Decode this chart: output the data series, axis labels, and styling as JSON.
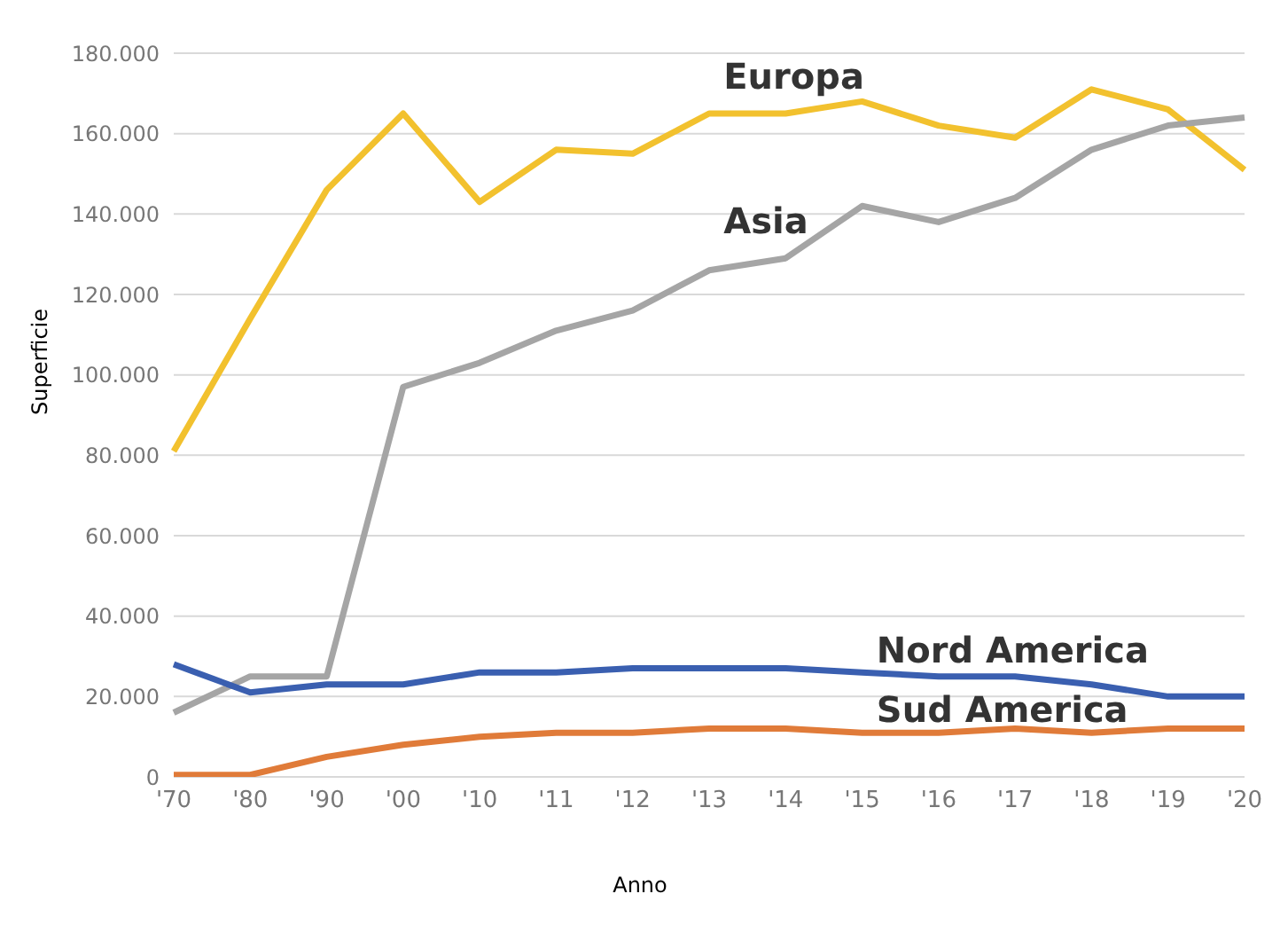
{
  "chart_data": {
    "type": "line",
    "xlabel": "Anno",
    "ylabel": "Superficie",
    "categories": [
      "'70",
      "'80",
      "'90",
      "'00",
      "'10",
      "'11",
      "'12",
      "'13",
      "'14",
      "'15",
      "'16",
      "'17",
      "'18",
      "'19",
      "'20"
    ],
    "series": [
      {
        "name": "Europa",
        "color": "#f2c12e",
        "values": [
          81000,
          114000,
          146000,
          165000,
          143000,
          156000,
          155000,
          165000,
          165000,
          168000,
          162000,
          159000,
          171000,
          166000,
          151000
        ]
      },
      {
        "name": "Asia",
        "color": "#a5a5a5",
        "values": [
          16000,
          25000,
          25000,
          97000,
          103000,
          111000,
          116000,
          126000,
          129000,
          142000,
          138000,
          144000,
          156000,
          162000,
          164000
        ]
      },
      {
        "name": "Nord America",
        "color": "#3a5fb0",
        "values": [
          28000,
          21000,
          23000,
          23000,
          26000,
          26000,
          27000,
          27000,
          27000,
          26000,
          25000,
          25000,
          23000,
          20000,
          20000
        ]
      },
      {
        "name": "Sud America",
        "color": "#e07b39",
        "values": [
          500,
          500,
          5000,
          8000,
          10000,
          11000,
          11000,
          12000,
          12000,
          11000,
          11000,
          12000,
          11000,
          12000,
          12000
        ]
      }
    ],
    "ylim": [
      0,
      180000
    ],
    "yticks": [
      {
        "value": 0,
        "label": "0"
      },
      {
        "value": 20000,
        "label": "20.000"
      },
      {
        "value": 40000,
        "label": "40.000"
      },
      {
        "value": 60000,
        "label": "60.000"
      },
      {
        "value": 80000,
        "label": "80.000"
      },
      {
        "value": 100000,
        "label": "100.000"
      },
      {
        "value": 120000,
        "label": "120.000"
      },
      {
        "value": 140000,
        "label": "140.000"
      },
      {
        "value": 160000,
        "label": "160.000"
      },
      {
        "value": 180000,
        "label": "180.000"
      }
    ],
    "grid": "y",
    "legend": false,
    "marker": "none",
    "line_style": "solid"
  }
}
